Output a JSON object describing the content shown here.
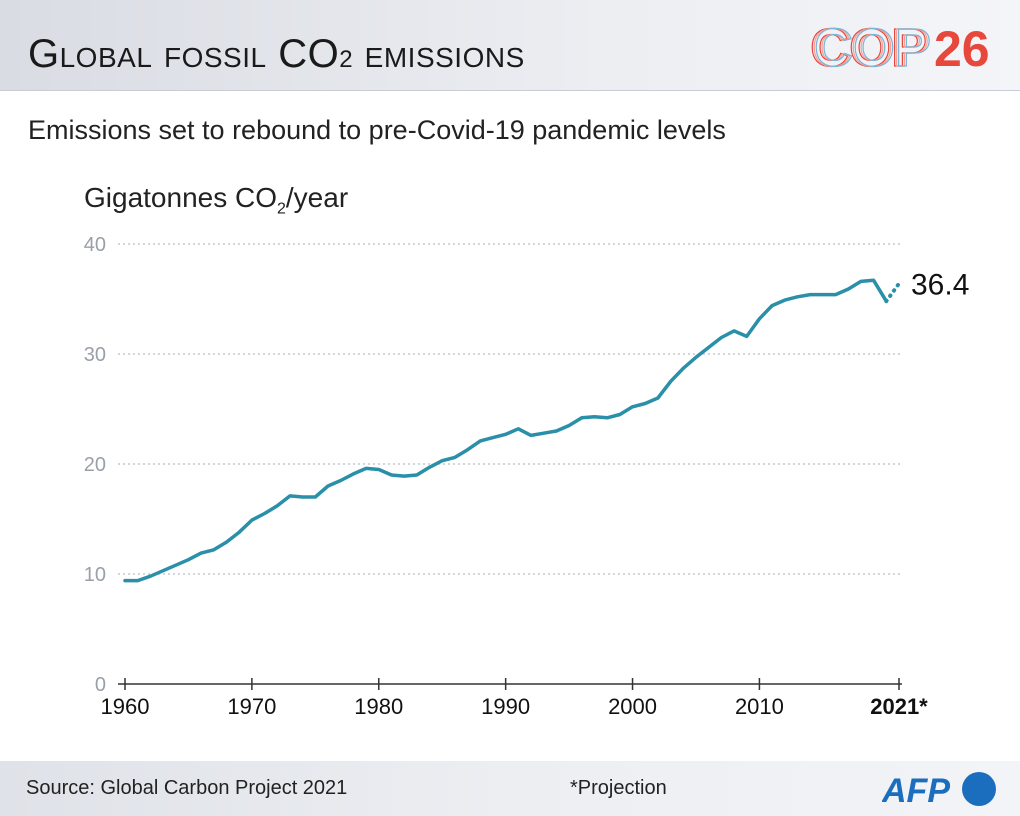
{
  "header": {
    "title_main": "Global fossil CO",
    "title_sub": "2",
    "title_end": " emissions",
    "logo_text": "COP",
    "logo_number": "26"
  },
  "subtitle": "Emissions set to rebound to pre-Covid-19 pandemic levels",
  "footer": {
    "source": "Source: Global Carbon Project 2021",
    "note": "*Projection",
    "agency_logo": "AFP"
  },
  "colors": {
    "line": "#2a8fa8",
    "cop_red": "#e8473b",
    "afp_blue": "#1a6ebd",
    "grid": "#b8bcc4",
    "axis_text": "#9aa0a8"
  },
  "chart_data": {
    "type": "line",
    "ylabel_main": "Gigatonnes CO",
    "ylabel_sub": "2",
    "ylabel_end": "/year",
    "ylim": [
      0,
      40
    ],
    "xlim": [
      1960,
      2021
    ],
    "y_ticks": [
      0,
      10,
      20,
      30,
      40
    ],
    "x_ticks": [
      {
        "value": 1960,
        "label": "1960"
      },
      {
        "value": 1970,
        "label": "1970"
      },
      {
        "value": 1980,
        "label": "1980"
      },
      {
        "value": 1990,
        "label": "1990"
      },
      {
        "value": 2000,
        "label": "2000"
      },
      {
        "value": 2010,
        "label": "2010"
      },
      {
        "value": 2021,
        "label": "2021*"
      }
    ],
    "grid": "horizontal-dotted",
    "series": [
      {
        "x": [
          1960,
          1961,
          1962,
          1963,
          1964,
          1965,
          1966,
          1967,
          1968,
          1969,
          1970,
          1971,
          1972,
          1973,
          1974,
          1975,
          1976,
          1977,
          1978,
          1979,
          1980,
          1981,
          1982,
          1983,
          1984,
          1985,
          1986,
          1987,
          1988,
          1989,
          1990,
          1991,
          1992,
          1993,
          1994,
          1995,
          1996,
          1997,
          1998,
          1999,
          2000,
          2001,
          2002,
          2003,
          2004,
          2005,
          2006,
          2007,
          2008,
          2009,
          2010,
          2011,
          2012,
          2013,
          2014,
          2015,
          2016,
          2017,
          2018,
          2019,
          2020
        ],
        "y": [
          9.4,
          9.4,
          9.8,
          10.3,
          10.8,
          11.3,
          11.9,
          12.2,
          12.9,
          13.8,
          14.9,
          15.5,
          16.2,
          17.1,
          17.0,
          17.0,
          18.0,
          18.5,
          19.1,
          19.6,
          19.5,
          19.0,
          18.9,
          19.0,
          19.7,
          20.3,
          20.6,
          21.3,
          22.1,
          22.4,
          22.7,
          23.2,
          22.6,
          22.8,
          23.0,
          23.5,
          24.2,
          24.3,
          24.2,
          24.5,
          25.2,
          25.5,
          26.0,
          27.5,
          28.7,
          29.7,
          30.6,
          31.5,
          32.1,
          31.6,
          33.2,
          34.4,
          34.9,
          35.2,
          35.4,
          35.4,
          35.4,
          35.9,
          36.6,
          36.7,
          34.8
        ]
      },
      {
        "x": [
          2020,
          2021
        ],
        "y": [
          34.8,
          36.4
        ],
        "style": "dotted"
      }
    ],
    "annotations": [
      {
        "text": "36.4",
        "x": 2021,
        "y": 36.4
      }
    ]
  }
}
